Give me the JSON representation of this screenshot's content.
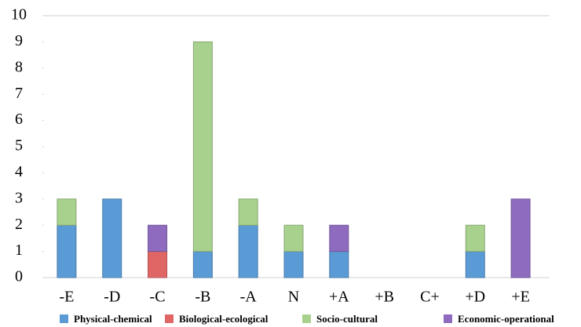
{
  "chart_data": {
    "type": "stacked_bar",
    "categories": [
      "-E",
      "-D",
      "-C",
      "-B",
      "-A",
      "N",
      "+A",
      "+B",
      "C+",
      "+D",
      "+E"
    ],
    "series": [
      {
        "name": "Physical-chemical",
        "color": "#5b9bd5",
        "values": [
          2,
          3,
          0,
          1,
          2,
          1,
          1,
          0,
          0,
          1,
          0
        ]
      },
      {
        "name": "Biological-ecological",
        "color": "#e06666",
        "values": [
          0,
          0,
          1,
          0,
          0,
          0,
          0,
          0,
          0,
          0,
          0
        ]
      },
      {
        "name": "Socio-cultural",
        "color": "#a9d18e",
        "values": [
          1,
          0,
          0,
          8,
          1,
          1,
          0,
          0,
          0,
          1,
          0
        ]
      },
      {
        "name": "Economic-operational",
        "color": "#8e6bbf",
        "values": [
          0,
          0,
          1,
          0,
          0,
          0,
          1,
          0,
          0,
          0,
          3
        ]
      }
    ],
    "ylim": [
      0,
      10
    ],
    "yticks": [
      0,
      1,
      2,
      3,
      4,
      5,
      6,
      7,
      8,
      9,
      10
    ]
  }
}
